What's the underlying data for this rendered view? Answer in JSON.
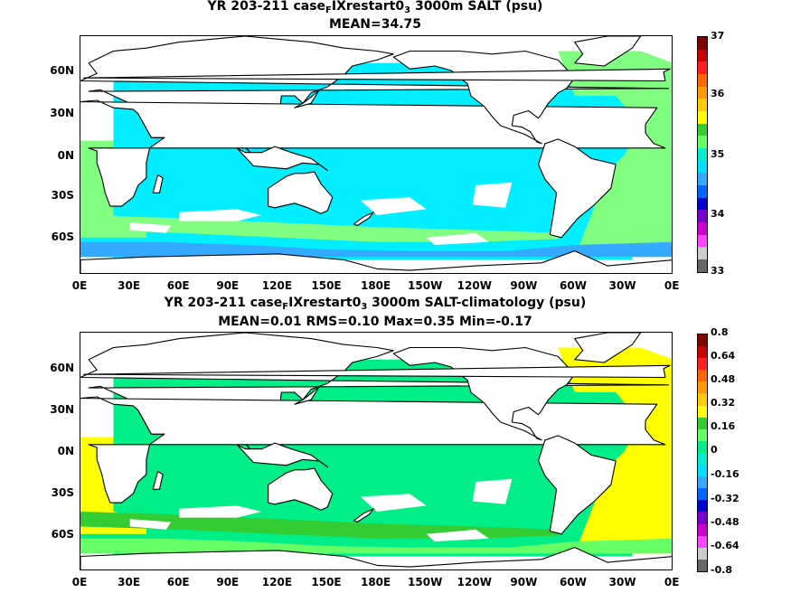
{
  "panels": [
    {
      "title_line1_pre": "YR 203-211 case",
      "title_line1_sub1": "F",
      "title_line1_mid": "IXrestart0",
      "title_line1_sub2": "3",
      "title_line1_post": " 3000m SALT (psu)",
      "title_line2": "MEAN=34.75",
      "y_ticks": [
        "60N",
        "30N",
        "0N",
        "30S",
        "60S"
      ],
      "x_ticks": [
        "0E",
        "30E",
        "60E",
        "90E",
        "120E",
        "150E",
        "180E",
        "150W",
        "120W",
        "90W",
        "60W",
        "30W",
        "0E"
      ],
      "colorbar": {
        "labels": [
          "37",
          "36",
          "35",
          "34",
          "33"
        ],
        "colors": [
          "#800000",
          "#cc0000",
          "#ff2020",
          "#ff6600",
          "#ff9900",
          "#ffcc00",
          "#ffff00",
          "#33cc33",
          "#66ff66",
          "#00eecc",
          "#00ddff",
          "#33aaff",
          "#0066ff",
          "#0000cc",
          "#7700cc",
          "#cc00cc",
          "#ff44ff",
          "#cccccc",
          "#666666"
        ]
      },
      "fields": {
        "ocean_base": "#00eeff",
        "atlantic": "#80ff80",
        "southern": "#33aaff",
        "frontal_zone": "#80ff80"
      }
    },
    {
      "title_line1_pre": "YR 203-211 case",
      "title_line1_sub1": "F",
      "title_line1_mid": "IXrestart0",
      "title_line1_sub2": "3",
      "title_line1_post": " 3000m SALT-climatology (psu)",
      "title_line2": "MEAN=0.01   RMS=0.10   Max=0.35   Min=-0.17",
      "y_ticks": [
        "60N",
        "30N",
        "0N",
        "30S",
        "60S"
      ],
      "x_ticks": [
        "0E",
        "30E",
        "60E",
        "90E",
        "120E",
        "150E",
        "180E",
        "150W",
        "120W",
        "90W",
        "60W",
        "30W",
        "0E"
      ],
      "colorbar": {
        "labels": [
          "0.8",
          "0.64",
          "0.48",
          "0.32",
          "0.16",
          "0",
          "-0.16",
          "-0.32",
          "-0.48",
          "-0.64",
          "-0.8"
        ],
        "colors": [
          "#800000",
          "#cc0000",
          "#ff2020",
          "#ff6600",
          "#ff9900",
          "#ffcc00",
          "#ffff00",
          "#33cc33",
          "#66ff66",
          "#00ee88",
          "#00eecc",
          "#00ddff",
          "#33aaff",
          "#0066ff",
          "#0000cc",
          "#7700cc",
          "#cc00cc",
          "#ff44ff",
          "#cccccc",
          "#666666"
        ]
      },
      "fields": {
        "ocean_base": "#00ee88",
        "atlantic": "#ffff00",
        "southern": "#66ff66",
        "frontal_zone": "#33cc33"
      }
    }
  ]
}
